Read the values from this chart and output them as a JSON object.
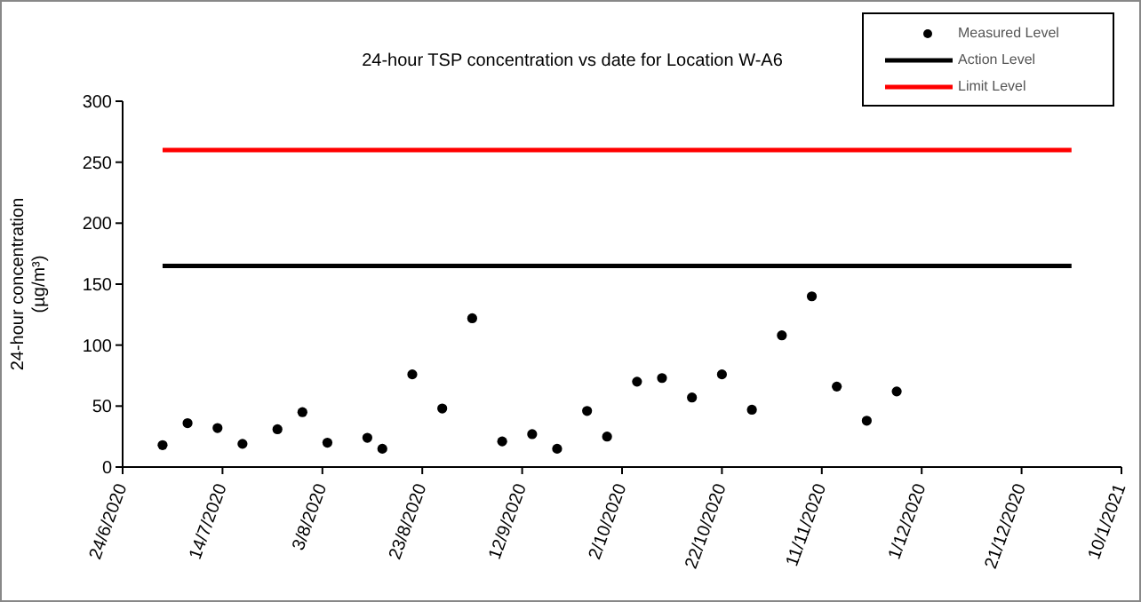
{
  "chart_data": {
    "type": "scatter",
    "title": "24-hour TSP concentration vs date for Location W-A6",
    "ylabel": "24-hour concentration\n(µg/m³)",
    "legend": "top right",
    "grid": false,
    "xlim": [
      "2020-06-24",
      "2021-01-10"
    ],
    "xticks": [
      {
        "value": "2020-06-24",
        "label": "24/6/2020"
      },
      {
        "value": "2020-07-14",
        "label": "14/7/2020"
      },
      {
        "value": "2020-08-03",
        "label": "3/8/2020"
      },
      {
        "value": "2020-08-23",
        "label": "23/8/2020"
      },
      {
        "value": "2020-09-12",
        "label": "12/9/2020"
      },
      {
        "value": "2020-10-02",
        "label": "2/10/2020"
      },
      {
        "value": "2020-10-22",
        "label": "22/10/2020"
      },
      {
        "value": "2020-11-11",
        "label": "11/11/2020"
      },
      {
        "value": "2020-12-01",
        "label": "1/12/2020"
      },
      {
        "value": "2020-12-21",
        "label": "21/12/2020"
      },
      {
        "value": "2021-01-10",
        "label": "10/1/2021"
      }
    ],
    "ylim": [
      0,
      300
    ],
    "yticks": [
      0,
      50,
      100,
      150,
      200,
      250,
      300
    ],
    "series": [
      {
        "name": "Measured Level",
        "marker": "circle",
        "color": "#000000",
        "x": [
          "2020-07-02",
          "2020-07-07",
          "2020-07-13",
          "2020-07-18",
          "2020-07-25",
          "2020-07-30",
          "2020-08-04",
          "2020-08-12",
          "2020-08-15",
          "2020-08-21",
          "2020-08-27",
          "2020-09-02",
          "2020-09-08",
          "2020-09-14",
          "2020-09-19",
          "2020-09-25",
          "2020-09-29",
          "2020-10-05",
          "2020-10-10",
          "2020-10-16",
          "2020-10-22",
          "2020-10-28",
          "2020-11-03",
          "2020-11-09",
          "2020-11-14",
          "2020-11-20",
          "2020-11-26"
        ],
        "values": [
          18,
          36,
          32,
          19,
          31,
          45,
          20,
          24,
          15,
          76,
          48,
          122,
          21,
          27,
          15,
          46,
          25,
          70,
          73,
          57,
          76,
          47,
          108,
          140,
          66,
          38,
          62
        ]
      },
      {
        "name": "Action Level",
        "type": "line",
        "marker": "none",
        "line_style": "solid",
        "color": "#000000",
        "x": [
          "2020-07-02",
          "2020-12-31"
        ],
        "values": [
          165,
          165
        ]
      },
      {
        "name": "Limit Level",
        "type": "line",
        "marker": "none",
        "line_style": "solid",
        "color": "#ff0000",
        "x": [
          "2020-07-02",
          "2020-12-31"
        ],
        "values": [
          260,
          260
        ]
      }
    ]
  }
}
